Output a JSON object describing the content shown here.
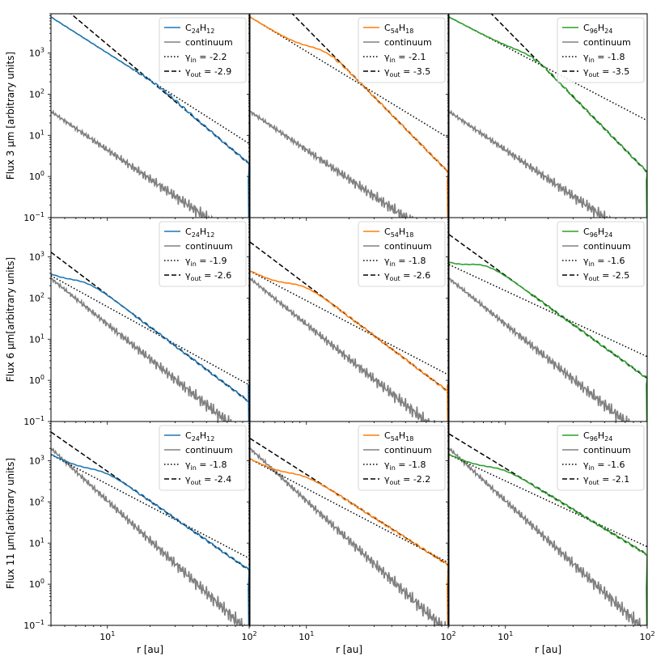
{
  "chart_data": {
    "type": "line",
    "layout": "3x3 grid",
    "x_scale": "log",
    "y_scale": "log",
    "xlim": [
      4,
      100
    ],
    "ylim": [
      0.1,
      9000
    ],
    "xlabel": "r [au]",
    "x_ticks": [
      {
        "value": 10,
        "label": "10",
        "sup": "1"
      },
      {
        "value": 100,
        "label": "10",
        "sup": "2"
      }
    ],
    "y_ticks": [
      {
        "value": 0.1,
        "label": "10",
        "sup": "−1"
      },
      {
        "value": 1,
        "label": "10",
        "sup": "0"
      },
      {
        "value": 10,
        "label": "10",
        "sup": "1"
      },
      {
        "value": 100,
        "label": "10",
        "sup": "2"
      },
      {
        "value": 1000,
        "label": "10",
        "sup": "3"
      }
    ],
    "row_labels": [
      {
        "prefix": "Flux 3 ",
        "unit": "μm [arbitrary units]"
      },
      {
        "prefix": "Flux 6 ",
        "unit": "μm[arbitrary units]"
      },
      {
        "prefix": "Flux 11 ",
        "unit": "μm[arbitrary units]"
      }
    ],
    "continuum_label": "continuum",
    "species": [
      {
        "name": "C24H12",
        "parts": [
          [
            "C",
            ""
          ],
          [
            "24",
            "sub"
          ],
          [
            "H",
            ""
          ],
          [
            "12",
            "sub"
          ]
        ],
        "color": "#1f77b4",
        "r_end": 100
      },
      {
        "name": "C54H18",
        "parts": [
          [
            "C",
            ""
          ],
          [
            "54",
            "sub"
          ],
          [
            "H",
            ""
          ],
          [
            "18",
            "sub"
          ]
        ],
        "color": "#ff7f0e",
        "r_end": 100
      },
      {
        "name": "C96H24",
        "parts": [
          [
            "C",
            ""
          ],
          [
            "96",
            "sub"
          ],
          [
            "H",
            ""
          ],
          [
            "24",
            "sub"
          ]
        ],
        "color": "#2ca02c",
        "r_end": 100
      }
    ],
    "continuum_color": "#808080",
    "panels": [
      {
        "row": 0,
        "col": 0,
        "gamma_in": "-2.2",
        "gamma_out": "-2.9",
        "in_fit": {
          "a": 7500,
          "g": -2.2
        },
        "out_fit": {
          "a": 23000,
          "g": -2.9
        },
        "break_r": 25,
        "continuum": {
          "a": 38,
          "g": -2.35
        }
      },
      {
        "row": 0,
        "col": 1,
        "gamma_in": "-2.1",
        "gamma_out": "-3.5",
        "in_fit": {
          "a": 7500,
          "g": -2.1
        },
        "out_fit": {
          "a": 100000,
          "g": -3.5
        },
        "break_r": 12,
        "continuum": {
          "a": 38,
          "g": -2.35
        }
      },
      {
        "row": 0,
        "col": 2,
        "gamma_in": "-1.8",
        "gamma_out": "-3.5",
        "in_fit": {
          "a": 7500,
          "g": -1.8
        },
        "out_fit": {
          "a": 100000,
          "g": -3.5
        },
        "break_r": 15,
        "continuum": {
          "a": 38,
          "g": -2.35
        }
      },
      {
        "row": 1,
        "col": 0,
        "gamma_in": "-1.9",
        "gamma_out": "-2.6",
        "in_fit": {
          "a": 350,
          "g": -1.9
        },
        "out_fit": {
          "a": 1300,
          "g": -2.6
        },
        "break_r": 6,
        "continuum": {
          "a": 300,
          "g": -2.8
        }
      },
      {
        "row": 1,
        "col": 1,
        "gamma_in": "-1.8",
        "gamma_out": "-2.6",
        "in_fit": {
          "a": 450,
          "g": -1.8
        },
        "out_fit": {
          "a": 2300,
          "g": -2.6
        },
        "break_r": 8,
        "continuum": {
          "a": 300,
          "g": -2.8
        }
      },
      {
        "row": 1,
        "col": 2,
        "gamma_in": "-1.6",
        "gamma_out": "-2.5",
        "in_fit": {
          "a": 650,
          "g": -1.6
        },
        "out_fit": {
          "a": 3500,
          "g": -2.5
        },
        "break_r": 6,
        "continuum": {
          "a": 300,
          "g": -2.8
        }
      },
      {
        "row": 2,
        "col": 0,
        "gamma_in": "-1.8",
        "gamma_out": "-2.4",
        "in_fit": {
          "a": 1400,
          "g": -1.8
        },
        "out_fit": {
          "a": 5000,
          "g": -2.4
        },
        "break_r": 8,
        "continuum": {
          "a": 2000,
          "g": -3.2
        }
      },
      {
        "row": 2,
        "col": 1,
        "gamma_in": "-1.8",
        "gamma_out": "-2.2",
        "in_fit": {
          "a": 1100,
          "g": -1.8
        },
        "out_fit": {
          "a": 3500,
          "g": -2.2
        },
        "break_r": 8,
        "continuum": {
          "a": 2000,
          "g": -3.2
        }
      },
      {
        "row": 2,
        "col": 2,
        "gamma_in": "-1.6",
        "gamma_out": "-2.1",
        "in_fit": {
          "a": 1400,
          "g": -1.6
        },
        "out_fit": {
          "a": 4500,
          "g": -2.1
        },
        "break_r": 8,
        "continuum": {
          "a": 2000,
          "g": -3.2
        }
      }
    ]
  }
}
